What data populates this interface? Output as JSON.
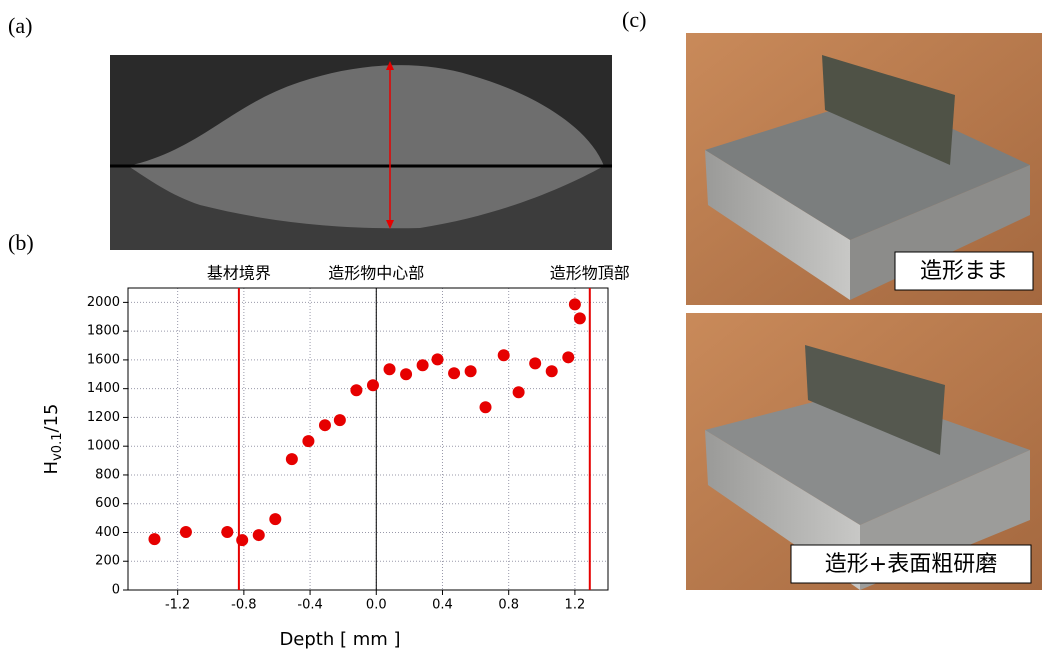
{
  "panels": {
    "a": "(a)",
    "b": "(b)",
    "c": "(c)"
  },
  "photo_captions": [
    "造形まま",
    "造形+表面粗研磨"
  ],
  "chart_data": {
    "type": "scatter",
    "x_label": "Depth [ mm ]",
    "y_label": {
      "main": "H",
      "sub": "v0.1",
      "rest": "/15"
    },
    "x": [
      -1.34,
      -1.15,
      -0.9,
      -0.81,
      -0.71,
      -0.61,
      -0.51,
      -0.41,
      -0.31,
      -0.22,
      -0.12,
      -0.02,
      0.08,
      0.18,
      0.28,
      0.37,
      0.47,
      0.57,
      0.66,
      0.77,
      0.86,
      0.96,
      1.06,
      1.16,
      1.2,
      1.23
    ],
    "values": [
      354,
      403,
      403,
      347,
      382,
      493,
      910,
      1035,
      1146,
      1181,
      1389,
      1424,
      1535,
      1500,
      1563,
      1604,
      1507,
      1521,
      1271,
      1632,
      1375,
      1576,
      1521,
      1618,
      1986,
      1889
    ],
    "color": "#e60000",
    "xlim": [
      -1.5,
      1.4
    ],
    "ylim": [
      0,
      2100
    ],
    "xticks": [
      -1.2,
      -0.8,
      -0.4,
      {
        "value": 0,
        "label": "0.0"
      },
      0.4,
      0.8,
      1.2
    ],
    "yticks": [
      0,
      200,
      400,
      600,
      800,
      1000,
      1200,
      1400,
      1600,
      1800,
      2000
    ],
    "grid": true,
    "vlines": [
      {
        "x": -0.83,
        "label": "基材境界",
        "color": "#e60000"
      },
      {
        "x": 0,
        "label": "造形物中心部",
        "color": "#000000"
      },
      {
        "x": 1.29,
        "label": "造形物頂部",
        "color": "#e60000"
      }
    ]
  }
}
